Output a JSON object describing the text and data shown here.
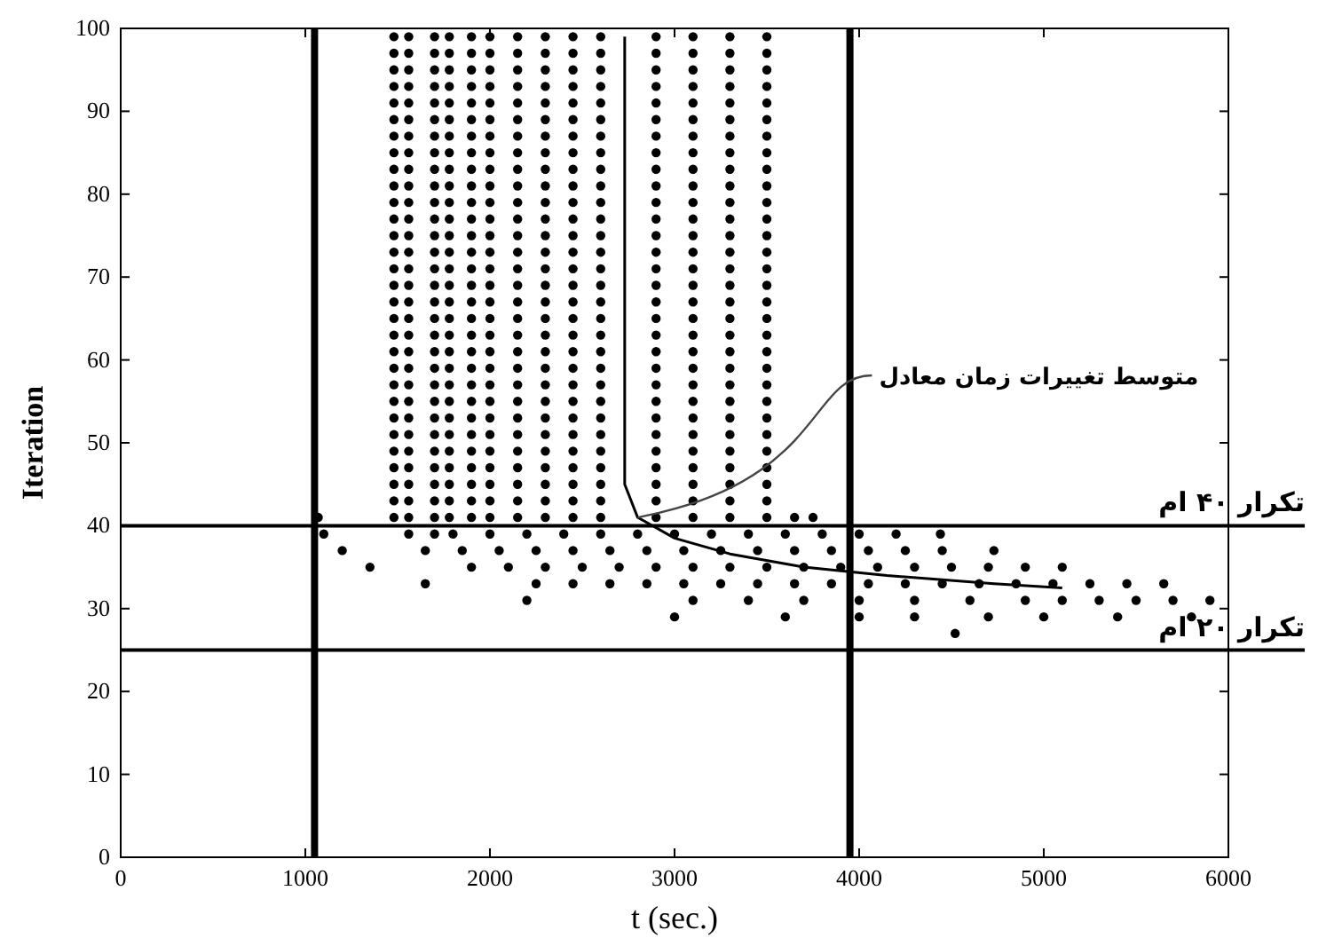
{
  "chart_data": {
    "type": "scatter",
    "xlabel": "t (sec.)",
    "ylabel": "Iteration",
    "xlim": [
      0,
      6000
    ],
    "ylim": [
      0,
      100
    ],
    "xticks": [
      0,
      1000,
      2000,
      3000,
      4000,
      5000,
      6000
    ],
    "yticks": [
      0,
      10,
      20,
      30,
      40,
      50,
      60,
      70,
      80,
      90,
      100
    ],
    "marker": "circle",
    "grid": false,
    "series": [
      {
        "color": "#000000",
        "x": [
          1480,
          1560,
          1700,
          1780,
          1900,
          2000,
          2150,
          2300,
          2450,
          2600,
          2900,
          3100,
          3300,
          3500,
          1480,
          1560,
          1700,
          1780,
          1900,
          2000,
          2150,
          2300,
          2450,
          2600,
          2900,
          3100,
          3300,
          3500,
          1480,
          1560,
          1700,
          1780,
          1900,
          2000,
          2150,
          2300,
          2450,
          2600,
          2900,
          3100,
          3300,
          3500,
          1480,
          1560,
          1700,
          1780,
          1900,
          2000,
          2150,
          2300,
          2450,
          2600,
          2900,
          3100,
          3300,
          3500,
          1480,
          1560,
          1700,
          1780,
          1900,
          2000,
          2150,
          2300,
          2450,
          2600,
          2900,
          3100,
          3300,
          3500,
          1480,
          1560,
          1700,
          1780,
          1900,
          2000,
          2150,
          2300,
          2450,
          2600,
          2900,
          3100,
          3300,
          3500
        ],
        "values": [
          99,
          99,
          99,
          99,
          99,
          99,
          99,
          99,
          99,
          99,
          99,
          99,
          99,
          99,
          97,
          97,
          97,
          97,
          97,
          97,
          97,
          97,
          97,
          97,
          97,
          97,
          97,
          97,
          95,
          95,
          95,
          95,
          95,
          95,
          95,
          95,
          95,
          95,
          95,
          95,
          95,
          95,
          93,
          93,
          93,
          93,
          93,
          93,
          93,
          93,
          93,
          93,
          93,
          93,
          93,
          93,
          91,
          91,
          91,
          91,
          91,
          91,
          91,
          91,
          91,
          91,
          91,
          91,
          91,
          91,
          89,
          89,
          89,
          89,
          89,
          89,
          89,
          89,
          89,
          89,
          89,
          89,
          89,
          89
        ]
      },
      {
        "color": "#000000",
        "x": [
          1480,
          1560,
          1700,
          1780,
          1900,
          2000,
          2150,
          2300,
          2450,
          2600,
          2900,
          3100,
          3300,
          3500,
          1480,
          1560,
          1700,
          1780,
          1900,
          2000,
          2150,
          2300,
          2450,
          2600,
          2900,
          3100,
          3300,
          3500,
          1480,
          1560,
          1700,
          1780,
          1900,
          2000,
          2150,
          2300,
          2450,
          2600,
          2900,
          3100,
          3300,
          3500,
          1480,
          1560,
          1700,
          1780,
          1900,
          2000,
          2150,
          2300,
          2450,
          2600,
          2900,
          3100,
          3300,
          3500,
          1480,
          1560,
          1700,
          1780,
          1900,
          2000,
          2150,
          2300,
          2450,
          2600,
          2900,
          3100,
          3300,
          3500,
          1480,
          1560,
          1700,
          1780,
          1900,
          2000,
          2150,
          2300,
          2450,
          2600,
          2900,
          3100,
          3300,
          3500
        ],
        "values": [
          87,
          87,
          87,
          87,
          87,
          87,
          87,
          87,
          87,
          87,
          87,
          87,
          87,
          87,
          85,
          85,
          85,
          85,
          85,
          85,
          85,
          85,
          85,
          85,
          85,
          85,
          85,
          85,
          83,
          83,
          83,
          83,
          83,
          83,
          83,
          83,
          83,
          83,
          83,
          83,
          83,
          83,
          81,
          81,
          81,
          81,
          81,
          81,
          81,
          81,
          81,
          81,
          81,
          81,
          81,
          81,
          79,
          79,
          79,
          79,
          79,
          79,
          79,
          79,
          79,
          79,
          79,
          79,
          79,
          79,
          77,
          77,
          77,
          77,
          77,
          77,
          77,
          77,
          77,
          77,
          77,
          77,
          77,
          77
        ]
      },
      {
        "color": "#000000",
        "x": [
          1480,
          1560,
          1700,
          1780,
          1900,
          2000,
          2150,
          2300,
          2450,
          2600,
          2900,
          3100,
          3300,
          3500,
          1480,
          1560,
          1700,
          1780,
          1900,
          2000,
          2150,
          2300,
          2450,
          2600,
          2900,
          3100,
          3300,
          3500,
          1480,
          1560,
          1700,
          1780,
          1900,
          2000,
          2150,
          2300,
          2450,
          2600,
          2900,
          3100,
          3300,
          3500,
          1480,
          1560,
          1700,
          1780,
          1900,
          2000,
          2150,
          2300,
          2450,
          2600,
          2900,
          3100,
          3300,
          3500,
          1480,
          1560,
          1700,
          1780,
          1900,
          2000,
          2150,
          2300,
          2450,
          2600,
          2900,
          3100,
          3300,
          3500,
          1480,
          1560,
          1700,
          1780,
          1900,
          2000,
          2150,
          2300,
          2450,
          2600,
          2900,
          3100,
          3300,
          3500
        ],
        "values": [
          75,
          75,
          75,
          75,
          75,
          75,
          75,
          75,
          75,
          75,
          75,
          75,
          75,
          75,
          73,
          73,
          73,
          73,
          73,
          73,
          73,
          73,
          73,
          73,
          73,
          73,
          73,
          73,
          71,
          71,
          71,
          71,
          71,
          71,
          71,
          71,
          71,
          71,
          71,
          71,
          71,
          71,
          69,
          69,
          69,
          69,
          69,
          69,
          69,
          69,
          69,
          69,
          69,
          69,
          69,
          69,
          67,
          67,
          67,
          67,
          67,
          67,
          67,
          67,
          67,
          67,
          67,
          67,
          67,
          67,
          65,
          65,
          65,
          65,
          65,
          65,
          65,
          65,
          65,
          65,
          65,
          65,
          65,
          65
        ]
      },
      {
        "color": "#000000",
        "x": [
          1480,
          1560,
          1700,
          1780,
          1900,
          2000,
          2150,
          2300,
          2450,
          2600,
          2900,
          3100,
          3300,
          3500,
          1480,
          1560,
          1700,
          1780,
          1900,
          2000,
          2150,
          2300,
          2450,
          2600,
          2900,
          3100,
          3300,
          3500,
          1480,
          1560,
          1700,
          1780,
          1900,
          2000,
          2150,
          2300,
          2450,
          2600,
          2900,
          3100,
          3300,
          3500,
          1480,
          1560,
          1700,
          1780,
          1900,
          2000,
          2150,
          2300,
          2450,
          2600,
          2900,
          3100,
          3300,
          3500,
          1480,
          1560,
          1700,
          1780,
          1900,
          2000,
          2150,
          2300,
          2450,
          2600,
          2900,
          3100,
          3300,
          3500,
          1480,
          1560,
          1700,
          1780,
          1900,
          2000,
          2150,
          2300,
          2450,
          2600,
          2900,
          3100,
          3300,
          3500
        ],
        "values": [
          63,
          63,
          63,
          63,
          63,
          63,
          63,
          63,
          63,
          63,
          63,
          63,
          63,
          63,
          61,
          61,
          61,
          61,
          61,
          61,
          61,
          61,
          61,
          61,
          61,
          61,
          61,
          61,
          59,
          59,
          59,
          59,
          59,
          59,
          59,
          59,
          59,
          59,
          59,
          59,
          59,
          59,
          57,
          57,
          57,
          57,
          57,
          57,
          57,
          57,
          57,
          57,
          57,
          57,
          57,
          57,
          55,
          55,
          55,
          55,
          55,
          55,
          55,
          55,
          55,
          55,
          55,
          55,
          55,
          55,
          53,
          53,
          53,
          53,
          53,
          53,
          53,
          53,
          53,
          53,
          53,
          53,
          53,
          53
        ]
      },
      {
        "color": "#000000",
        "x": [
          1480,
          1560,
          1700,
          1780,
          1900,
          2000,
          2150,
          2300,
          2450,
          2600,
          2900,
          3100,
          3300,
          3500,
          1480,
          1560,
          1700,
          1780,
          1900,
          2000,
          2150,
          2300,
          2450,
          2600,
          2900,
          3100,
          3300,
          3500,
          1480,
          1560,
          1700,
          1780,
          1900,
          2000,
          2150,
          2300,
          2450,
          2600,
          2900,
          3100,
          3300,
          3500,
          1480,
          1560,
          1700,
          1780,
          1900,
          2000,
          2150,
          2300,
          2450,
          2600,
          2900,
          3100,
          3300,
          3500,
          1480,
          1560,
          1700,
          1780,
          1900,
          2000,
          2150,
          2300,
          2450,
          2600,
          2900,
          3100,
          3300,
          3500,
          1070,
          1480,
          1560,
          1700,
          1780,
          1900,
          2000,
          2150,
          2300,
          2450,
          2600,
          2900,
          3100,
          3300,
          3500,
          3650,
          3750
        ],
        "values": [
          51,
          51,
          51,
          51,
          51,
          51,
          51,
          51,
          51,
          51,
          51,
          51,
          51,
          51,
          49,
          49,
          49,
          49,
          49,
          49,
          49,
          49,
          49,
          49,
          49,
          49,
          49,
          49,
          47,
          47,
          47,
          47,
          47,
          47,
          47,
          47,
          47,
          47,
          47,
          47,
          47,
          47,
          45,
          45,
          45,
          45,
          45,
          45,
          45,
          45,
          45,
          45,
          45,
          45,
          45,
          45,
          43,
          43,
          43,
          43,
          43,
          43,
          43,
          43,
          43,
          43,
          43,
          43,
          43,
          43,
          41,
          41,
          41,
          41,
          41,
          41,
          41,
          41,
          41,
          41,
          41,
          41,
          41,
          41,
          41,
          41,
          41
        ]
      },
      {
        "color": "#000000",
        "x": [
          1100,
          1560,
          1700,
          1800,
          2000,
          2200,
          2400,
          2600,
          2800,
          3000,
          3200,
          3400,
          3600,
          3800,
          4000,
          4200,
          4440,
          1200,
          1650,
          1850,
          2050,
          2250,
          2450,
          2650,
          2850,
          3050,
          3250,
          3450,
          3650,
          3850,
          4050,
          4250,
          4450,
          4730,
          1350,
          1900,
          2100,
          2300,
          2500,
          2700,
          2900,
          3100,
          3300,
          3500,
          3700,
          3900,
          4100,
          4300,
          4500,
          4700,
          4900,
          5100,
          1650,
          2250,
          2450,
          2650,
          2850,
          3050,
          3250,
          3450,
          3650,
          3850,
          4050,
          4250,
          4450,
          4650,
          4850,
          5050,
          5250,
          5450,
          5650,
          2200,
          3100,
          3400,
          3700,
          4000,
          4300,
          4600,
          4900,
          5100,
          5300,
          5500,
          5700,
          5900,
          3000,
          3600,
          4000,
          4300,
          4700,
          5000,
          5400,
          5800,
          4520
        ],
        "values": [
          39,
          39,
          39,
          39,
          39,
          39,
          39,
          39,
          39,
          39,
          39,
          39,
          39,
          39,
          39,
          39,
          39,
          37,
          37,
          37,
          37,
          37,
          37,
          37,
          37,
          37,
          37,
          37,
          37,
          37,
          37,
          37,
          37,
          37,
          35,
          35,
          35,
          35,
          35,
          35,
          35,
          35,
          35,
          35,
          35,
          35,
          35,
          35,
          35,
          35,
          35,
          35,
          33,
          33,
          33,
          33,
          33,
          33,
          33,
          33,
          33,
          33,
          33,
          33,
          33,
          33,
          33,
          33,
          33,
          33,
          33,
          31,
          31,
          31,
          31,
          31,
          31,
          31,
          31,
          31,
          31,
          31,
          31,
          31,
          29,
          29,
          29,
          29,
          29,
          29,
          29,
          29,
          27
        ]
      },
      {
        "type": "line",
        "color": "#000000",
        "marker": "none",
        "x": [
          2730,
          2730,
          2800,
          3000,
          3300,
          3700,
          4150,
          4730,
          5100
        ],
        "values": [
          99,
          45,
          41,
          38.5,
          36.6,
          35,
          34,
          33,
          32.5
        ]
      }
    ],
    "ref_lines": [
      {
        "axis": "y",
        "value": 40,
        "label": "تکرار ۴۰ ام",
        "color": "#000000"
      },
      {
        "axis": "y",
        "value": 25,
        "label": "تکرار ۲۰ ام",
        "color": "#000000"
      },
      {
        "axis": "x",
        "value": 1050,
        "color": "#000000"
      },
      {
        "axis": "x",
        "value": 3950,
        "color": "#000000"
      }
    ],
    "annotations": [
      {
        "text": "متوسط تغییرات زمان معادل",
        "x": 2800,
        "y": 41
      }
    ]
  }
}
